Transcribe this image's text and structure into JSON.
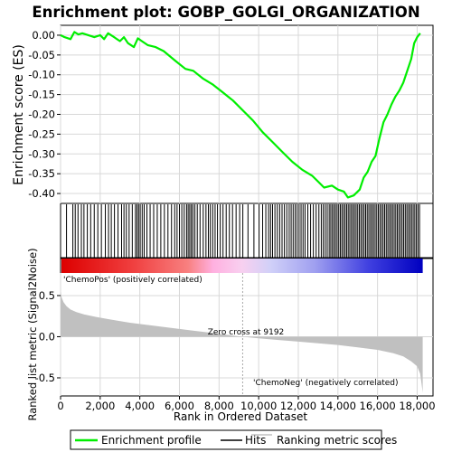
{
  "chart_data": [
    {
      "type": "line",
      "title": "Enrichment plot: GOBP_GOLGI_ORGANIZATION",
      "ylabel": "Enrichment score (ES)",
      "xlim": [
        0,
        18800
      ],
      "ylim": [
        -0.425,
        0.025
      ],
      "y_ticks": [
        0.0,
        -0.05,
        -0.1,
        -0.15,
        -0.2,
        -0.25,
        -0.3,
        -0.35,
        -0.4
      ],
      "y_tick_labels": [
        "0.00",
        "-0.05",
        "-0.10",
        "-0.15",
        "-0.20",
        "-0.25",
        "-0.30",
        "-0.35",
        "-0.40"
      ],
      "grid": true,
      "series": [
        {
          "name": "Enrichment profile",
          "color": "#00ee00",
          "x": [
            0,
            200,
            500,
            700,
            900,
            1100,
            1400,
            1700,
            2000,
            2200,
            2400,
            2700,
            3000,
            3200,
            3400,
            3700,
            3900,
            4100,
            4400,
            4800,
            5200,
            5800,
            6300,
            6700,
            7200,
            7700,
            8200,
            8700,
            9200,
            9700,
            10200,
            10700,
            11200,
            11700,
            12200,
            12700,
            13000,
            13300,
            13700,
            14000,
            14300,
            14500,
            14800,
            15100,
            15300,
            15500,
            15700,
            15900,
            16100,
            16300,
            16500,
            16700,
            16900,
            17100,
            17300,
            17500,
            17700,
            17850,
            18000,
            18150
          ],
          "values": [
            0.0,
            -0.005,
            -0.01,
            0.008,
            0.002,
            0.005,
            0.0,
            -0.005,
            0.0,
            -0.01,
            0.005,
            -0.005,
            -0.015,
            -0.005,
            -0.02,
            -0.03,
            -0.008,
            -0.015,
            -0.025,
            -0.03,
            -0.04,
            -0.065,
            -0.085,
            -0.09,
            -0.11,
            -0.125,
            -0.145,
            -0.165,
            -0.19,
            -0.215,
            -0.245,
            -0.27,
            -0.295,
            -0.32,
            -0.34,
            -0.355,
            -0.37,
            -0.385,
            -0.38,
            -0.39,
            -0.395,
            -0.41,
            -0.405,
            -0.39,
            -0.36,
            -0.345,
            -0.32,
            -0.305,
            -0.26,
            -0.22,
            -0.2,
            -0.175,
            -0.155,
            -0.14,
            -0.12,
            -0.09,
            -0.06,
            -0.02,
            -0.005,
            0.005
          ]
        }
      ]
    },
    {
      "type": "scatter",
      "legend_name": "Hits",
      "hits": [
        300,
        620,
        740,
        880,
        1050,
        1180,
        1350,
        1520,
        1700,
        1880,
        2060,
        2260,
        2420,
        2560,
        2720,
        2900,
        3080,
        3200,
        3320,
        3460,
        3620,
        3780,
        3860,
        3940,
        4020,
        4120,
        4220,
        4360,
        4520,
        4700,
        4880,
        5060,
        5240,
        5420,
        5600,
        5760,
        5880,
        6000,
        6120,
        6240,
        6360,
        6440,
        6520,
        6600,
        6680,
        6780,
        6900,
        7040,
        7200,
        7340,
        7460,
        7560,
        7680,
        7800,
        7920,
        8060,
        8200,
        8360,
        8520,
        8680,
        8860,
        9040,
        9200,
        9460,
        9760,
        10020,
        10200,
        10360,
        10500,
        10600,
        10700,
        10820,
        10940,
        11060,
        11180,
        11300,
        11420,
        11540,
        11640,
        11740,
        11840,
        11940,
        12040,
        12140,
        12240,
        12340,
        12480,
        12620,
        12760,
        12900,
        13040,
        13160,
        13260,
        13360,
        13460,
        13560,
        13640,
        13720,
        13800,
        13880,
        13960,
        14040,
        14120,
        14200,
        14280,
        14360,
        14440,
        14520,
        14600,
        14680,
        14760,
        14840,
        14920,
        15000,
        15080,
        15160,
        15240,
        15320,
        15400,
        15480,
        15560,
        15640,
        15720,
        15800,
        15880,
        15960,
        16040,
        16120,
        16200,
        16280,
        16360,
        16440,
        16520,
        16600,
        16680,
        16760,
        16840,
        16920,
        17000,
        17080,
        17160,
        17240,
        17320,
        17400,
        17480,
        17560,
        17640,
        17720,
        17800,
        17880,
        17960,
        18040,
        18120
      ]
    },
    {
      "type": "area",
      "xlabel": "Rank in Ordered Dataset",
      "ylabel": "Ranked list metric (Signal2Noise)",
      "xlim": [
        0,
        18800
      ],
      "ylim": [
        -0.72,
        0.95
      ],
      "x_ticks": [
        0,
        2000,
        4000,
        6000,
        8000,
        10000,
        12000,
        14000,
        16000,
        18000
      ],
      "x_tick_labels": [
        "0",
        "2,000",
        "4,000",
        "6,000",
        "8,000",
        "10,000",
        "12,000",
        "14,000",
        "16,000",
        "18,000"
      ],
      "y_ticks": [
        0.5,
        0.0,
        -0.5
      ],
      "y_tick_labels": [
        "0.5",
        "0.0",
        "-0.5"
      ],
      "grid": true,
      "series": [
        {
          "name": "Ranking metric scores",
          "color": "#c0c0c0",
          "x": [
            0,
            50,
            150,
            300,
            500,
            800,
            1200,
            1800,
            2500,
            3500,
            4500,
            5500,
            6500,
            7500,
            8500,
            9192,
            10000,
            11000,
            12000,
            13000,
            14000,
            15000,
            16000,
            16800,
            17300,
            17700,
            18000,
            18150,
            18250,
            18280
          ],
          "values": [
            0.55,
            0.48,
            0.42,
            0.37,
            0.33,
            0.3,
            0.27,
            0.24,
            0.21,
            0.17,
            0.14,
            0.11,
            0.08,
            0.05,
            0.02,
            0.0,
            -0.02,
            -0.04,
            -0.06,
            -0.08,
            -0.1,
            -0.13,
            -0.16,
            -0.2,
            -0.24,
            -0.3,
            -0.36,
            -0.45,
            -0.62,
            -0.68
          ]
        }
      ],
      "annotations": {
        "zero_cross": "Zero cross at 9192",
        "pos_label": "'ChemoPos' (positively correlated)",
        "neg_label": "'ChemoNeg' (negatively correlated)"
      },
      "zero_cross_x": 9192
    }
  ],
  "colors": {
    "profile": "#00ee00",
    "hits": "#000000",
    "metric": "#c0c0c0",
    "pos_text": "#cc0000",
    "neg_text": "#0000cc",
    "grid": "#d8d8d8"
  },
  "legend": {
    "items": [
      {
        "label": "Enrichment profile",
        "color": "#00ee00"
      },
      {
        "label": "Hits",
        "color": "#000000"
      },
      {
        "label": "Ranking metric scores",
        "color": "#c0c0c0"
      }
    ]
  }
}
